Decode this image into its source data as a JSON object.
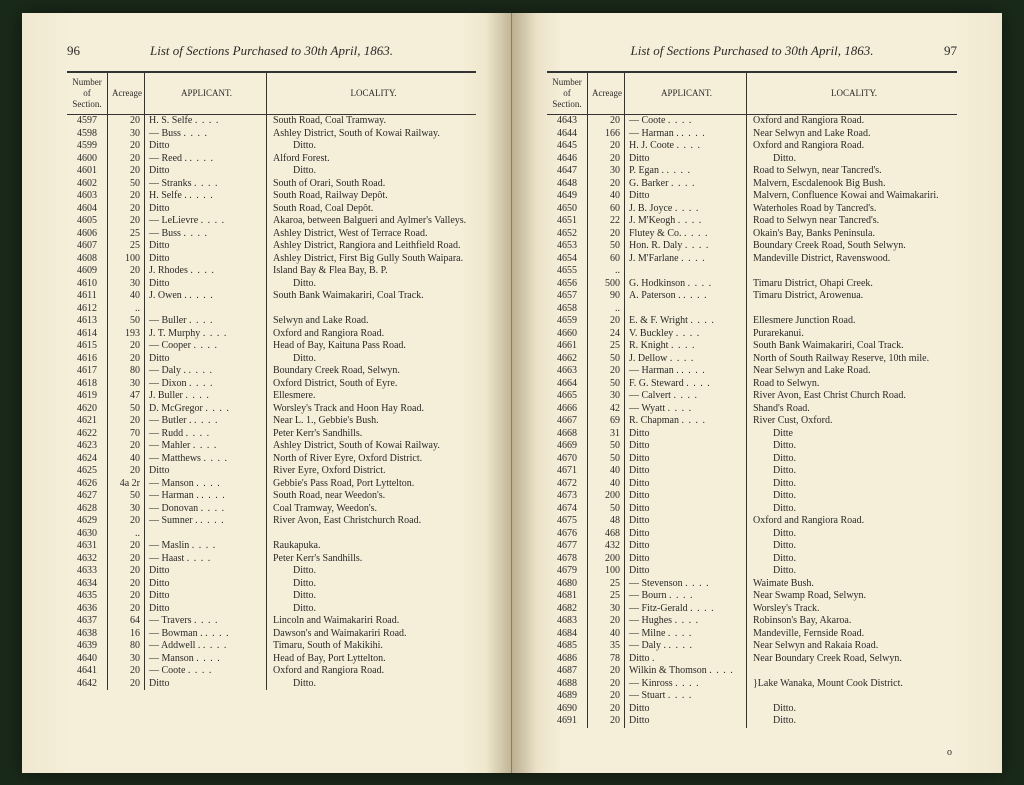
{
  "title": "List of Sections Purchased to 30th April, 1863.",
  "columns": {
    "section": "Number of Section.",
    "acreage": "Acreage",
    "applicant": "APPLICANT.",
    "locality": "LOCALITY."
  },
  "left": {
    "pageNum": "96",
    "rows": [
      {
        "s": "4597",
        "a": "20",
        "ap": "H. S. Selfe",
        "loc": "South Road, Coal Tramway."
      },
      {
        "s": "4598",
        "a": "30",
        "ap": "— Buss",
        "loc": "Ashley District, South of Kowai Railway."
      },
      {
        "s": "4599",
        "a": "20",
        "ap": "  Ditto",
        "loc": "        Ditto."
      },
      {
        "s": "4600",
        "a": "20",
        "ap": "— Reed .",
        "loc": "Alford Forest."
      },
      {
        "s": "4601",
        "a": "20",
        "ap": "  Ditto",
        "loc": "        Ditto."
      },
      {
        "s": "4602",
        "a": "50",
        "ap": "— Stranks",
        "loc": "South of Orari, South Road."
      },
      {
        "s": "4603",
        "a": "20",
        "ap": "H. Selfe .",
        "loc": "South Road, Railway Depôt."
      },
      {
        "s": "4604",
        "a": "20",
        "ap": "  Ditto",
        "loc": "South Road, Coal Depôt."
      },
      {
        "s": "4605",
        "a": "20",
        "ap": "— LeLievre",
        "loc": "Akaroa, between Balgueri and Aylmer's Valleys."
      },
      {
        "s": "4606",
        "a": "25",
        "ap": "— Buss",
        "loc": "Ashley District, West of Terrace Road."
      },
      {
        "s": "4607",
        "a": "25",
        "ap": "  Ditto",
        "loc": "Ashley District, Rangiora and Leithfield Road."
      },
      {
        "s": "4608",
        "a": "100",
        "ap": "  Ditto",
        "loc": "Ashley District, First Big Gully South Waipara."
      },
      {
        "s": "4609",
        "a": "20",
        "ap": "J. Rhodes",
        "loc": "Island Bay & Flea Bay, B. P."
      },
      {
        "s": "4610",
        "a": "30",
        "ap": "  Ditto",
        "loc": "        Ditto."
      },
      {
        "s": "4611",
        "a": "40",
        "ap": "J. Owen .",
        "loc": "South Bank Waimakariri, Coal Track."
      },
      {
        "s": "4612",
        "a": "..",
        "ap": "",
        "loc": ""
      },
      {
        "s": "4613",
        "a": "50",
        "ap": "— Buller",
        "loc": "Selwyn and Lake Road."
      },
      {
        "s": "4614",
        "a": "193",
        "ap": "J. T. Murphy",
        "loc": "Oxford and Rangiora Road."
      },
      {
        "s": "4615",
        "a": "20",
        "ap": "— Cooper",
        "loc": "Head of Bay, Kaituna Pass Road."
      },
      {
        "s": "4616",
        "a": "20",
        "ap": "  Ditto",
        "loc": "        Ditto."
      },
      {
        "s": "4617",
        "a": "80",
        "ap": "— Daly .",
        "loc": "Boundary Creek Road, Selwyn."
      },
      {
        "s": "4618",
        "a": "30",
        "ap": "— Dixon",
        "loc": "Oxford District, South of Eyre."
      },
      {
        "s": "4619",
        "a": "47",
        "ap": "J. Buller",
        "loc": "Ellesmere."
      },
      {
        "s": "4620",
        "a": "50",
        "ap": "D. McGregor",
        "loc": "Worsley's Track and Hoon Hay Road."
      },
      {
        "s": "4621",
        "a": "20",
        "ap": "— Butler .",
        "loc": "Near L. 1., Gebbie's Bush."
      },
      {
        "s": "4622",
        "a": "70",
        "ap": "— Rudd",
        "loc": "Peter Kerr's Sandhills."
      },
      {
        "s": "4623",
        "a": "20",
        "ap": "— Mahler",
        "loc": "Ashley District, South of Kowai Railway."
      },
      {
        "s": "4624",
        "a": "40",
        "ap": "— Matthews",
        "loc": "North of River Eyre, Oxford District."
      },
      {
        "s": "4625",
        "a": "20",
        "ap": "  Ditto",
        "loc": "River Eyre, Oxford District."
      },
      {
        "s": "4626",
        "a": "4a 2r",
        "ap": "— Manson",
        "loc": "Gebbie's Pass Road, Port Lyttelton."
      },
      {
        "s": "4627",
        "a": "50",
        "ap": "— Harman .",
        "loc": "South Road, near Weedon's."
      },
      {
        "s": "4628",
        "a": "30",
        "ap": "— Donovan",
        "loc": "Coal Tramway, Weedon's."
      },
      {
        "s": "4629",
        "a": "20",
        "ap": "— Sumner .",
        "loc": "River Avon, East Christchurch Road."
      },
      {
        "s": "4630",
        "a": "..",
        "ap": "",
        "loc": ""
      },
      {
        "s": "4631",
        "a": "20",
        "ap": "— Maslin",
        "loc": "Raukapuka."
      },
      {
        "s": "4632",
        "a": "20",
        "ap": "— Haast",
        "loc": "Peter Kerr's Sandhills."
      },
      {
        "s": "4633",
        "a": "20",
        "ap": "  Ditto",
        "loc": "        Ditto."
      },
      {
        "s": "4634",
        "a": "20",
        "ap": "  Ditto",
        "loc": "        Ditto."
      },
      {
        "s": "4635",
        "a": "20",
        "ap": "  Ditto",
        "loc": "        Ditto."
      },
      {
        "s": "4636",
        "a": "20",
        "ap": "  Ditto",
        "loc": "        Ditto."
      },
      {
        "s": "4637",
        "a": "64",
        "ap": "— Travers",
        "loc": "Lincoln and Waimakariri Road."
      },
      {
        "s": "4638",
        "a": "16",
        "ap": "— Bowman .",
        "loc": "Dawson's and Waimakariri Road."
      },
      {
        "s": "4639",
        "a": "80",
        "ap": "— Addwell .",
        "loc": "Timaru, South of Makikihi."
      },
      {
        "s": "4640",
        "a": "30",
        "ap": "— Manson",
        "loc": "Head of Bay, Port Lyttelton."
      },
      {
        "s": "4641",
        "a": "20",
        "ap": "— Coote",
        "loc": "Oxford and Rangiora Road."
      },
      {
        "s": "4642",
        "a": "20",
        "ap": "  Ditto",
        "loc": "        Ditto."
      }
    ]
  },
  "right": {
    "pageNum": "97",
    "sheetMark": "o",
    "rows": [
      {
        "s": "4643",
        "a": "20",
        "ap": "— Coote",
        "loc": "Oxford and Rangiora Road."
      },
      {
        "s": "4644",
        "a": "166",
        "ap": "— Harman .",
        "loc": "Near Selwyn and Lake Road."
      },
      {
        "s": "4645",
        "a": "20",
        "ap": "H. J. Coote",
        "loc": "Oxford and Rangiora Road."
      },
      {
        "s": "4646",
        "a": "20",
        "ap": "  Ditto",
        "loc": "        Ditto."
      },
      {
        "s": "4647",
        "a": "30",
        "ap": "P. Egan .",
        "loc": "Road to Selwyn, near Tancred's."
      },
      {
        "s": "4648",
        "a": "20",
        "ap": "G. Barker",
        "loc": "Malvern, Escdalenook Big Bush."
      },
      {
        "s": "4649",
        "a": "40",
        "ap": "  Ditto",
        "loc": "Malvern, Confluence Kowai and Waimakariri."
      },
      {
        "s": "4650",
        "a": "60",
        "ap": "J. B. Joyce",
        "loc": "Waterholes Road by Tancred's."
      },
      {
        "s": "4651",
        "a": "22",
        "ap": "J. M'Keogh",
        "loc": "Road to Selwyn near Tancred's."
      },
      {
        "s": "4652",
        "a": "20",
        "ap": "Flutey & Co.",
        "loc": "Okain's Bay, Banks Peninsula."
      },
      {
        "s": "4653",
        "a": "50",
        "ap": "Hon. R. Daly",
        "loc": "Boundary Creek Road, South Selwyn."
      },
      {
        "s": "4654",
        "a": "60",
        "ap": "J. M'Farlane",
        "loc": "Mandeville District, Ravenswood."
      },
      {
        "s": "4655",
        "a": "..",
        "ap": "",
        "loc": ""
      },
      {
        "s": "4656",
        "a": "500",
        "ap": "G. Hodkinson",
        "loc": "Timaru District, Ohapi Creek."
      },
      {
        "s": "4657",
        "a": "90",
        "ap": "A. Paterson .",
        "loc": "Timaru District, Arowenua."
      },
      {
        "s": "4658",
        "a": "..",
        "ap": "",
        "loc": ""
      },
      {
        "s": "4659",
        "a": "20",
        "ap": "E. & F. Wright",
        "loc": "Ellesmere Junction Road."
      },
      {
        "s": "4660",
        "a": "24",
        "ap": "V. Buckley",
        "loc": "Purarekanui."
      },
      {
        "s": "4661",
        "a": "25",
        "ap": "R. Knight",
        "loc": "South Bank Waimakariri, Coal Track."
      },
      {
        "s": "4662",
        "a": "50",
        "ap": "J. Dellow",
        "loc": "North of South Railway Reserve, 10th mile."
      },
      {
        "s": "4663",
        "a": "20",
        "ap": "— Harman .",
        "loc": "Near Selwyn and Lake Road."
      },
      {
        "s": "4664",
        "a": "50",
        "ap": "F. G. Steward",
        "loc": "Road to Selwyn."
      },
      {
        "s": "4665",
        "a": "30",
        "ap": "— Calvert",
        "loc": "River Avon, East Christ Church Road."
      },
      {
        "s": "4666",
        "a": "42",
        "ap": "— Wyatt",
        "loc": "Shand's Road."
      },
      {
        "s": "4667",
        "a": "69",
        "ap": "R. Chapman",
        "loc": "River Cust, Oxford."
      },
      {
        "s": "4668",
        "a": "31",
        "ap": "  Ditto",
        "loc": "        Ditte"
      },
      {
        "s": "4669",
        "a": "50",
        "ap": "  Ditto",
        "loc": "        Ditto."
      },
      {
        "s": "4670",
        "a": "50",
        "ap": "  Ditto",
        "loc": "        Ditto."
      },
      {
        "s": "4671",
        "a": "40",
        "ap": "  Ditto",
        "loc": "        Ditto."
      },
      {
        "s": "4672",
        "a": "40",
        "ap": "  Ditto",
        "loc": "        Ditto."
      },
      {
        "s": "4673",
        "a": "200",
        "ap": "  Ditto",
        "loc": "        Ditto."
      },
      {
        "s": "4674",
        "a": "50",
        "ap": "  Ditto",
        "loc": "        Ditto."
      },
      {
        "s": "4675",
        "a": "48",
        "ap": "  Ditto",
        "loc": "Oxford and Rangiora Road."
      },
      {
        "s": "4676",
        "a": "468",
        "ap": "  Ditto",
        "loc": "        Ditto."
      },
      {
        "s": "4677",
        "a": "432",
        "ap": "  Ditto",
        "loc": "        Ditto."
      },
      {
        "s": "4678",
        "a": "200",
        "ap": "  Ditto",
        "loc": "        Ditto."
      },
      {
        "s": "4679",
        "a": "100",
        "ap": "  Ditto",
        "loc": "        Ditto."
      },
      {
        "s": "4680",
        "a": "25",
        "ap": "— Stevenson",
        "loc": "Waimate Bush."
      },
      {
        "s": "4681",
        "a": "25",
        "ap": "— Bourn",
        "loc": "Near Swamp Road, Selwyn."
      },
      {
        "s": "4682",
        "a": "30",
        "ap": "— Fitz-Gerald",
        "loc": "Worsley's Track."
      },
      {
        "s": "4683",
        "a": "20",
        "ap": "— Hughes",
        "loc": "Robinson's Bay, Akaroa."
      },
      {
        "s": "4684",
        "a": "40",
        "ap": "— Milne",
        "loc": "Mandeville, Fernside Road."
      },
      {
        "s": "4685",
        "a": "35",
        "ap": "— Daly .",
        "loc": "Near Selwyn and Rakaia Road."
      },
      {
        "s": "4686",
        "a": "78",
        "ap": "  Ditto .",
        "loc": "Near Boundary Creek Road, Selwyn."
      },
      {
        "s": "4687",
        "a": "20",
        "ap": "Wilkin & Thomson",
        "loc": ""
      },
      {
        "s": "4688",
        "a": "20",
        "ap": "— Kinross",
        "loc": "}Lake Wanaka, Mount Cook District."
      },
      {
        "s": "4689",
        "a": "20",
        "ap": "— Stuart",
        "loc": ""
      },
      {
        "s": "4690",
        "a": "20",
        "ap": "  Ditto",
        "loc": "        Ditto."
      },
      {
        "s": "4691",
        "a": "20",
        "ap": "  Ditto",
        "loc": "        Ditto."
      }
    ]
  }
}
